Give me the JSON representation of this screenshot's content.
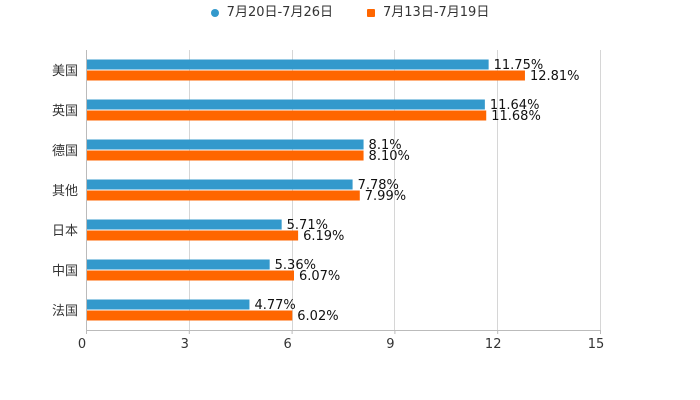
{
  "chart_data": {
    "type": "bar",
    "orientation": "horizontal",
    "categories": [
      "美国",
      "英国",
      "德国",
      "其他",
      "日本",
      "中国",
      "法国"
    ],
    "series": [
      {
        "name": "7月20日-7月26日",
        "color": "#3399cc",
        "marker": "circle",
        "values": [
          11.75,
          11.64,
          8.1,
          7.78,
          5.71,
          5.36,
          4.77
        ],
        "labels": [
          "11.75%",
          "11.64%",
          "8.1%",
          "7.78%",
          "5.71%",
          "5.36%",
          "4.77%"
        ]
      },
      {
        "name": "7月13日-7月19日",
        "color": "#ff6600",
        "marker": "square",
        "values": [
          12.81,
          11.68,
          8.1,
          7.99,
          6.19,
          6.07,
          6.02
        ],
        "labels": [
          "12.81%",
          "11.68%",
          "8.10%",
          "7.99%",
          "6.19%",
          "6.07%",
          "6.02%"
        ]
      }
    ],
    "xlim": [
      0,
      15
    ],
    "xticks": [
      "0",
      "3",
      "6",
      "9",
      "12",
      "15"
    ],
    "grid": true,
    "legend_position": "top-center"
  }
}
